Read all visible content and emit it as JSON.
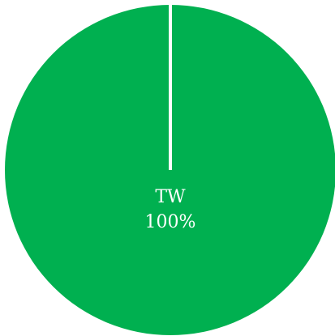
{
  "chart_data": {
    "type": "pie",
    "title": "",
    "slices": [
      {
        "label": "TW",
        "value": 100,
        "display": "100%",
        "color": "#00b050"
      }
    ],
    "legend": "none"
  },
  "colors": {
    "background": "#ffffff",
    "slice_border": "#ffffff"
  }
}
